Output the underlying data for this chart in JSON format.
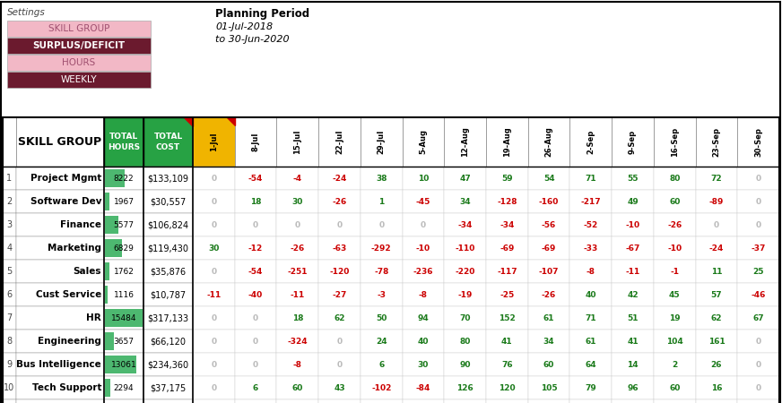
{
  "settings_label": "Settings",
  "settings_rows": [
    {
      "label": "SKILL GROUP",
      "bg": "#f2b8c6",
      "fg": "#a05070",
      "bold": false
    },
    {
      "label": "SURPLUS/DEFICIT",
      "bg": "#6b1a2e",
      "fg": "#ffffff",
      "bold": true
    },
    {
      "label": "HOURS",
      "bg": "#f2b8c6",
      "fg": "#a05070",
      "bold": false
    },
    {
      "label": "WEEKLY",
      "bg": "#6b1a2e",
      "fg": "#ffffff",
      "bold": false
    }
  ],
  "planning_period_label": "Planning Period",
  "planning_period_date1": "01-Jul-2018",
  "planning_period_date2": "to 30-Jun-2020",
  "skill_group_header": "SKILL GROUP",
  "header_green": "#27a244",
  "header_gold": "#f0b400",
  "positive_color": "#1a7a1a",
  "negative_color": "#cc0000",
  "zero_color": "#bbbbbb",
  "row_names": [
    "Project Mgmt",
    "Software Dev",
    "Finance",
    "Marketing",
    "Sales",
    "Cust Service",
    "HR",
    "Engineering",
    "Bus Intelligence",
    "Tech Support",
    ""
  ],
  "row_hours": [
    8222,
    1967,
    5577,
    6829,
    1762,
    1116,
    15484,
    3657,
    13061,
    2294,
    null
  ],
  "row_costs": [
    "$133,109",
    "$30,557",
    "$106,824",
    "$119,430",
    "$35,876",
    "$10,787",
    "$317,133",
    "$66,120",
    "$234,360",
    "$37,175",
    null
  ],
  "date_headers": [
    "1-Jul",
    "8-Jul",
    "15-Jul",
    "22-Jul",
    "29-Jul",
    "5-Aug",
    "12-Aug",
    "19-Aug",
    "26-Aug",
    "2-Sep",
    "9-Sep",
    "16-Sep",
    "23-Sep",
    "30-Sep"
  ],
  "all_rows_values": [
    [
      0,
      -54,
      -4,
      -24,
      38,
      10,
      47,
      59,
      54,
      71,
      55,
      80,
      72,
      0
    ],
    [
      0,
      18,
      30,
      -26,
      1,
      -45,
      34,
      -128,
      -160,
      -217,
      49,
      60,
      -89,
      0
    ],
    [
      0,
      0,
      0,
      0,
      0,
      0,
      -34,
      -34,
      -56,
      -52,
      -10,
      -26,
      0,
      0
    ],
    [
      30,
      -12,
      -26,
      -63,
      -292,
      -10,
      -110,
      -69,
      -69,
      -33,
      -67,
      -10,
      -24,
      -37
    ],
    [
      0,
      -54,
      -251,
      -120,
      -78,
      -236,
      -220,
      -117,
      -107,
      -8,
      -11,
      -1,
      11,
      25
    ],
    [
      -11,
      -40,
      -11,
      -27,
      -3,
      -8,
      -19,
      -25,
      -26,
      40,
      42,
      45,
      57,
      -46
    ],
    [
      0,
      0,
      18,
      62,
      50,
      94,
      70,
      152,
      61,
      71,
      51,
      19,
      62,
      67
    ],
    [
      0,
      0,
      -324,
      0,
      24,
      40,
      80,
      41,
      34,
      61,
      41,
      104,
      161,
      0
    ],
    [
      0,
      0,
      -8,
      0,
      6,
      30,
      90,
      76,
      60,
      64,
      14,
      2,
      26,
      0
    ],
    [
      0,
      6,
      60,
      43,
      -102,
      -84,
      126,
      120,
      105,
      79,
      96,
      60,
      16,
      0
    ],
    []
  ],
  "max_hours": 15484,
  "fig_w": 8.72,
  "fig_h": 4.5,
  "dpi": 100
}
